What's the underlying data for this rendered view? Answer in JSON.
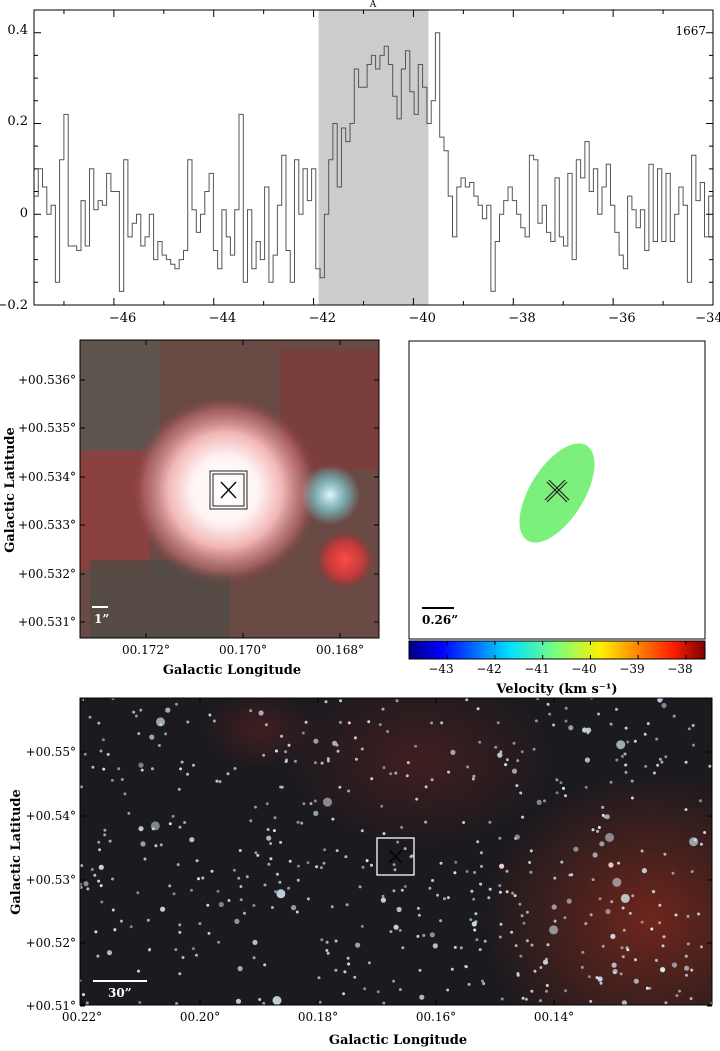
{
  "spectrum": {
    "line_label": "1667",
    "marker_label": "A",
    "highlight_range": [
      -41.9,
      -39.7
    ],
    "x_ticks": [
      "−46",
      "−44",
      "−42",
      "−40",
      "−38",
      "−36",
      "−34"
    ],
    "y_ticks": [
      "0.4",
      "0.2",
      "0",
      "−0.2"
    ]
  },
  "chart_data": [
    {
      "type": "line",
      "style": "step",
      "xlim": [
        -47.6,
        -34.0
      ],
      "ylim": [
        -0.2,
        0.45
      ],
      "x_ticks": [
        -46,
        -44,
        -42,
        -40,
        -38,
        -36,
        -34
      ],
      "y_ticks": [
        0.4,
        0.2,
        0,
        -0.2
      ],
      "highlight": [
        -41.9,
        -39.7
      ],
      "annotation": "1667",
      "series": [
        {
          "values": [
            0.04,
            0.1,
            0.06,
            0.0,
            0.02,
            -0.15,
            0.12,
            0.22,
            -0.07,
            -0.07,
            -0.08,
            0.03,
            -0.07,
            0.1,
            0.01,
            0.03,
            0.02,
            0.09,
            0.05,
            0.05,
            -0.17,
            0.12,
            -0.05,
            -0.02,
            0.0,
            -0.07,
            -0.05,
            0.0,
            -0.1,
            -0.06,
            -0.09,
            -0.1,
            -0.11,
            -0.12,
            -0.1,
            -0.08,
            0.12,
            0.01,
            -0.04,
            0.0,
            0.05,
            0.09,
            -0.08,
            -0.12,
            0.01,
            -0.05,
            -0.09,
            0.01,
            0.22,
            -0.15,
            0.01,
            -0.12,
            -0.06,
            -0.1,
            0.06,
            -0.15,
            -0.09,
            0.02,
            0.13,
            -0.08,
            -0.15,
            0.12,
            0.0,
            0.1,
            0.03,
            0.1,
            -0.12,
            -0.14,
            0.0,
            0.12,
            0.2,
            0.06,
            0.19,
            0.16,
            0.2,
            0.32,
            0.28,
            0.28,
            0.33,
            0.35,
            0.32,
            0.35,
            0.37,
            0.33,
            0.26,
            0.21,
            0.32,
            0.36,
            0.27,
            0.22,
            0.33,
            0.28,
            0.2,
            0.25,
            0.4,
            0.17,
            0.14,
            0.04,
            -0.05,
            0.06,
            0.08,
            0.06,
            0.07,
            0.04,
            0.02,
            -0.01,
            0.02,
            -0.17,
            -0.06,
            0.0,
            0.03,
            0.06,
            0.03,
            0.0,
            -0.03,
            -0.05,
            0.13,
            0.12,
            -0.02,
            0.02,
            -0.04,
            -0.06,
            0.08,
            -0.05,
            -0.07,
            0.09,
            -0.1,
            0.12,
            0.08,
            0.16,
            0.05,
            0.1,
            0.0,
            0.06,
            0.11,
            0.02,
            -0.04,
            -0.09,
            -0.12,
            0.04,
            0.01,
            -0.03,
            0.01,
            -0.08,
            0.11,
            -0.06,
            0.1,
            -0.06,
            0.09,
            -0.06,
            0.0,
            0.06,
            0.02,
            -0.15,
            0.13,
            0.03,
            0.07,
            -0.05,
            0.04
          ]
        }
      ]
    },
    {
      "type": "heatmap",
      "colorbar_range": [
        -43.8,
        -37.6
      ],
      "colorbar_ticks": [
        -43,
        -42,
        -41,
        -40,
        -39,
        -38
      ],
      "maser_velocity": -40.8
    }
  ],
  "image_rgb": {
    "y_ticks": [
      "+00.536°",
      "+00.535°",
      "+00.534°",
      "+00.533°",
      "+00.532°",
      "+00.531°"
    ],
    "x_ticks": [
      "00.172°",
      "00.170°",
      "00.168°"
    ],
    "xlabel": "Galactic Longitude",
    "ylabel": "Galactic Latitude",
    "scale_label": "1”"
  },
  "velocity_map": {
    "scale_label": "0.26”",
    "colorbar_ticks": [
      "−43",
      "−42",
      "−41",
      "−40",
      "−39",
      "−38"
    ],
    "colorbar_label": "Velocity (km s⁻¹)",
    "spot_color": "#7cf07c"
  },
  "wide_field": {
    "y_ticks": [
      "+00.55°",
      "+00.54°",
      "+00.53°",
      "+00.52°",
      "+00.51°"
    ],
    "x_ticks": [
      "00.22°",
      "00.20°",
      "00.18°",
      "00.16°",
      "00.14°"
    ],
    "xlabel": "Galactic Longitude",
    "ylabel": "Galactic Latitude",
    "scale_label": "30”"
  }
}
